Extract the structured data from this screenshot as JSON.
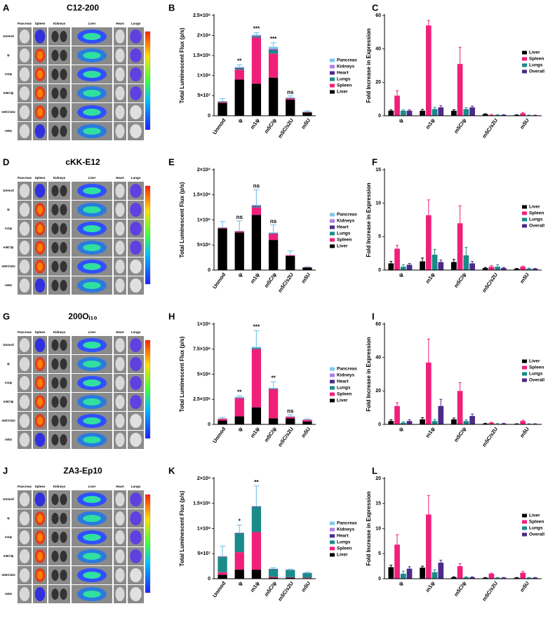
{
  "image_panels": [
    {
      "panel": "A",
      "title": "C12-200",
      "columns": [
        "Pancreas",
        "Spleen",
        "Kidneys",
        "Liver",
        "Heart",
        "Lungs"
      ],
      "rows": [
        "Unmod",
        "ψ",
        "m1ψ",
        "m5C/ψ",
        "m5C/s2U",
        "m5U"
      ]
    },
    {
      "panel": "D",
      "title": "cKK-E12",
      "columns": [
        "Pancreas",
        "Spleen",
        "Kidneys",
        "Liver",
        "Heart",
        "Lungs"
      ],
      "rows": [
        "Unmod",
        "ψ",
        "m1ψ",
        "m5C/ψ",
        "m5C/s2U",
        "m5U"
      ]
    },
    {
      "panel": "G",
      "title": "200Oᵢ₁₀",
      "columns": [
        "Pancreas",
        "Spleen",
        "Kidneys",
        "Liver",
        "Heart",
        "Lungs"
      ],
      "rows": [
        "Unmod",
        "ψ",
        "m1ψ",
        "m5C/ψ",
        "m5C/s2U",
        "m5U"
      ]
    },
    {
      "panel": "J",
      "title": "ZA3-Ep10",
      "columns": [
        "Pancreas",
        "Spleen",
        "Kidneys",
        "Liver",
        "Heart",
        "Lungs"
      ],
      "rows": [
        "Unmod",
        "ψ",
        "m1ψ",
        "m5C/ψ",
        "m5C/s2U",
        "m5U"
      ]
    }
  ],
  "chart_data": [
    {
      "panel": "B",
      "type": "bar",
      "stacked": true,
      "ylabel": "Total Luminescent Flux (p/s)",
      "categories": [
        "Unmod",
        "ψ",
        "m1ψ",
        "m5C/ψ",
        "m5C/s2U",
        "m5U"
      ],
      "ylim": [
        0,
        250000000
      ],
      "yticks": [
        0,
        {
          "value": 50000000,
          "label": "5×10⁷"
        },
        {
          "value": 100000000,
          "label": "1×10⁸"
        },
        {
          "value": 150000000,
          "label": "1.5×10⁸"
        },
        {
          "value": 200000000,
          "label": "2×10⁸"
        },
        {
          "value": 250000000,
          "label": "2.5×10⁸"
        }
      ],
      "annotations": [
        null,
        "**",
        "***",
        "***",
        "ns",
        null
      ],
      "series": [
        {
          "name": "Liver",
          "color": "#000000",
          "values": [
            32000000,
            90000000,
            80000000,
            95000000,
            40000000,
            8000000
          ]
        },
        {
          "name": "Spleen",
          "color": "#f0207a",
          "values": [
            2000000,
            25000000,
            115000000,
            60000000,
            3000000,
            1000000
          ]
        },
        {
          "name": "Lungs",
          "color": "#1a8a8a",
          "values": [
            1000000,
            3000000,
            3000000,
            8000000,
            1000000,
            500000
          ]
        },
        {
          "name": "Heart",
          "color": "#4b2a8a",
          "values": [
            500000,
            1000000,
            1000000,
            2000000,
            500000,
            200000
          ]
        },
        {
          "name": "Kidneys",
          "color": "#b07fe0",
          "values": [
            500000,
            1000000,
            1000000,
            2000000,
            500000,
            200000
          ]
        },
        {
          "name": "Pancreas",
          "color": "#7ec8e8",
          "values": [
            500000,
            2000000,
            2000000,
            5000000,
            500000,
            200000
          ],
          "errors": [
            6000000,
            5000000,
            5000000,
            10000000,
            4000000,
            2000000
          ]
        }
      ]
    },
    {
      "panel": "C",
      "type": "bar",
      "stacked": false,
      "ylabel": "Fold Increase in Expression",
      "categories": [
        "ψ",
        "m1ψ",
        "m5C/ψ",
        "m5C/s2U",
        "m5U"
      ],
      "ylim": [
        0,
        60
      ],
      "yticks": [
        0,
        20,
        40,
        60
      ],
      "series": [
        {
          "name": "Liver",
          "color": "#000000",
          "values": [
            3,
            3,
            3,
            1,
            0.5
          ],
          "errors": [
            0.5,
            0.8,
            0.6,
            0.2,
            0.1
          ]
        },
        {
          "name": "Spleen",
          "color": "#f0207a",
          "values": [
            12,
            54,
            31,
            0.5,
            1.5
          ],
          "errors": [
            3,
            3,
            10,
            0.3,
            0.5
          ]
        },
        {
          "name": "Lungs",
          "color": "#1a8a8a",
          "values": [
            3,
            4,
            4,
            0.5,
            0.3
          ],
          "errors": [
            0.5,
            1,
            0.8,
            0.2,
            0.1
          ]
        },
        {
          "name": "Overall",
          "color": "#4b2a8a",
          "values": [
            3,
            5,
            5,
            0.5,
            0.3
          ],
          "errors": [
            0.5,
            1,
            0.8,
            0.2,
            0.1
          ]
        }
      ]
    },
    {
      "panel": "E",
      "type": "bar",
      "stacked": true,
      "ylabel": "Total Luminescent Flux (p/s)",
      "categories": [
        "Unmod",
        "ψ",
        "m1ψ",
        "m5C/ψ",
        "m5C/s2U",
        "m5U"
      ],
      "ylim": [
        0,
        2000000000
      ],
      "yticks": [
        0,
        {
          "value": 500000000,
          "label": "5×10⁸"
        },
        {
          "value": 1000000000,
          "label": "1×10⁹"
        },
        {
          "value": 1500000000,
          "label": "1.5×10⁹"
        },
        {
          "value": 2000000000,
          "label": "2×10⁹"
        }
      ],
      "annotations": [
        null,
        "ns",
        "ns",
        "ns",
        null,
        null
      ],
      "series": [
        {
          "name": "Liver",
          "color": "#000000",
          "values": [
            830000000,
            750000000,
            1100000000,
            600000000,
            280000000,
            50000000
          ]
        },
        {
          "name": "Spleen",
          "color": "#f0207a",
          "values": [
            10000000,
            20000000,
            150000000,
            120000000,
            15000000,
            5000000
          ]
        },
        {
          "name": "Lungs",
          "color": "#1a8a8a",
          "values": [
            5000000,
            5000000,
            20000000,
            10000000,
            3000000,
            1000000
          ]
        },
        {
          "name": "Heart",
          "color": "#4b2a8a",
          "values": [
            2000000,
            2000000,
            10000000,
            5000000,
            1000000,
            1000000
          ]
        },
        {
          "name": "Kidneys",
          "color": "#b07fe0",
          "values": [
            2000000,
            2000000,
            10000000,
            5000000,
            1000000,
            1000000
          ]
        },
        {
          "name": "Pancreas",
          "color": "#7ec8e8",
          "values": [
            1000000,
            1000000,
            10000000,
            10000000,
            1000000,
            1000000
          ],
          "errors": [
            120000000,
            200000000,
            300000000,
            150000000,
            80000000,
            10000000
          ]
        }
      ]
    },
    {
      "panel": "F",
      "type": "bar",
      "stacked": false,
      "ylabel": "Fold Increase in Expression",
      "categories": [
        "ψ",
        "m1ψ",
        "m5C/ψ",
        "m5C/s2U",
        "m5U"
      ],
      "ylim": [
        0,
        15
      ],
      "yticks": [
        0,
        5,
        10,
        15
      ],
      "series": [
        {
          "name": "Liver",
          "color": "#000000",
          "values": [
            1,
            1.3,
            1.2,
            0.3,
            0.2
          ],
          "errors": [
            0.3,
            0.5,
            0.4,
            0.1,
            0.05
          ]
        },
        {
          "name": "Spleen",
          "color": "#f0207a",
          "values": [
            3.2,
            8.2,
            7,
            0.5,
            0.5
          ],
          "errors": [
            0.5,
            2.3,
            2.6,
            0.2,
            0.1
          ]
        },
        {
          "name": "Lungs",
          "color": "#1a8a8a",
          "values": [
            0.5,
            2.3,
            2.2,
            0.5,
            0.2
          ],
          "errors": [
            0.3,
            0.8,
            1.2,
            0.3,
            0.1
          ]
        },
        {
          "name": "Overall",
          "color": "#4b2a8a",
          "values": [
            0.8,
            1.2,
            1,
            0.3,
            0.2
          ],
          "errors": [
            0.2,
            0.3,
            0.3,
            0.1,
            0.05
          ]
        }
      ]
    },
    {
      "panel": "H",
      "type": "bar",
      "stacked": true,
      "ylabel": "Total Luminescent Flux (p/s)",
      "categories": [
        "Unmod",
        "ψ",
        "m1ψ",
        "m5C/ψ",
        "m5C/s2U",
        "m5U"
      ],
      "ylim": [
        0,
        1000000000
      ],
      "yticks": [
        0,
        {
          "value": 250000000,
          "label": "2.5×10⁸"
        },
        {
          "value": 500000000,
          "label": "5×10⁸"
        },
        {
          "value": 750000000,
          "label": "7.5×10⁸"
        },
        {
          "value": 1000000000,
          "label": "1×10⁹"
        }
      ],
      "annotations": [
        null,
        "**",
        "***",
        "**",
        "ns",
        null
      ],
      "series": [
        {
          "name": "Liver",
          "color": "#000000",
          "values": [
            40000000,
            80000000,
            170000000,
            60000000,
            60000000,
            30000000
          ]
        },
        {
          "name": "Spleen",
          "color": "#f0207a",
          "values": [
            15000000,
            180000000,
            580000000,
            290000000,
            15000000,
            15000000
          ]
        },
        {
          "name": "Lungs",
          "color": "#1a8a8a",
          "values": [
            2000000,
            5000000,
            10000000,
            5000000,
            2000000,
            1000000
          ]
        },
        {
          "name": "Heart",
          "color": "#4b2a8a",
          "values": [
            1000000,
            2000000,
            2000000,
            2000000,
            1000000,
            1000000
          ]
        },
        {
          "name": "Kidneys",
          "color": "#b07fe0",
          "values": [
            1000000,
            2000000,
            2000000,
            2000000,
            1000000,
            1000000
          ]
        },
        {
          "name": "Pancreas",
          "color": "#7ec8e8",
          "values": [
            1000000,
            5000000,
            10000000,
            5000000,
            1000000,
            1000000
          ],
          "errors": [
            10000000,
            10000000,
            160000000,
            60000000,
            15000000,
            5000000
          ]
        }
      ]
    },
    {
      "panel": "I",
      "type": "bar",
      "stacked": false,
      "ylabel": "Fold Increase in Expression",
      "categories": [
        "ψ",
        "m1ψ",
        "m5C/ψ",
        "m5C/s2U",
        "m5U"
      ],
      "ylim": [
        0,
        60
      ],
      "yticks": [
        0,
        20,
        40,
        60
      ],
      "series": [
        {
          "name": "Liver",
          "color": "#000000",
          "values": [
            2,
            3,
            3,
            0.5,
            0.3
          ],
          "errors": [
            0.8,
            1,
            0.8,
            0.2,
            0.1
          ]
        },
        {
          "name": "Spleen",
          "color": "#f0207a",
          "values": [
            11,
            37,
            20,
            1,
            2
          ],
          "errors": [
            2,
            14,
            5,
            0.3,
            0.5
          ]
        },
        {
          "name": "Lungs",
          "color": "#1a8a8a",
          "values": [
            1,
            2,
            2,
            0.3,
            0.3
          ],
          "errors": [
            0.5,
            1,
            0.8,
            0.2,
            0.1
          ]
        },
        {
          "name": "Overall",
          "color": "#4b2a8a",
          "values": [
            2,
            11,
            5,
            0.5,
            0.3
          ],
          "errors": [
            0.8,
            4,
            1.2,
            0.2,
            0.1
          ]
        }
      ]
    },
    {
      "panel": "K",
      "type": "bar",
      "stacked": true,
      "ylabel": "Total Luminescent Flux (p/s)",
      "categories": [
        "Unmod",
        "ψ",
        "m1ψ",
        "m5C/ψ",
        "m5C/s2U",
        "m5U"
      ],
      "ylim": [
        0,
        200000000
      ],
      "yticks": [
        0,
        {
          "value": 50000000,
          "label": "5×10⁷"
        },
        {
          "value": 100000000,
          "label": "1×10⁸"
        },
        {
          "value": 150000000,
          "label": "1.5×10⁸"
        },
        {
          "value": 200000000,
          "label": "2×10⁸"
        }
      ],
      "annotations": [
        null,
        "*",
        "**",
        null,
        null,
        null
      ],
      "series": [
        {
          "name": "Liver",
          "color": "#000000",
          "values": [
            8000000,
            18000000,
            18000000,
            2000000,
            2000000,
            1000000
          ]
        },
        {
          "name": "Spleen",
          "color": "#f0207a",
          "values": [
            5000000,
            35000000,
            75000000,
            2000000,
            1000000,
            1000000
          ]
        },
        {
          "name": "Lungs",
          "color": "#1a8a8a",
          "values": [
            30000000,
            37000000,
            50000000,
            15000000,
            14000000,
            9000000
          ]
        },
        {
          "name": "Heart",
          "color": "#4b2a8a",
          "values": [
            1000000,
            1000000,
            1000000,
            500000,
            500000,
            500000
          ]
        },
        {
          "name": "Kidneys",
          "color": "#b07fe0",
          "values": [
            500000,
            500000,
            500000,
            200000,
            200000,
            200000
          ]
        },
        {
          "name": "Pancreas",
          "color": "#7ec8e8",
          "values": [
            500000,
            500000,
            500000,
            300000,
            300000,
            300000
          ],
          "errors": [
            20000000,
            15000000,
            40000000,
            2000000,
            1000000,
            1000000
          ]
        }
      ]
    },
    {
      "panel": "L",
      "type": "bar",
      "stacked": false,
      "ylabel": "Fold Increase in Expression",
      "categories": [
        "ψ",
        "m1ψ",
        "m5C/ψ",
        "m5C/s2U",
        "m5U"
      ],
      "ylim": [
        0,
        20
      ],
      "yticks": [
        0,
        5,
        10,
        15,
        20
      ],
      "series": [
        {
          "name": "Liver",
          "color": "#000000",
          "values": [
            2.3,
            2.2,
            0.3,
            0.2,
            0.2
          ],
          "errors": [
            0.4,
            0.3,
            0.1,
            0.05,
            0.05
          ]
        },
        {
          "name": "Spleen",
          "color": "#f0207a",
          "values": [
            6.8,
            12.8,
            2.5,
            1,
            1.2
          ],
          "errors": [
            2,
            3.8,
            0.5,
            0.1,
            0.3
          ]
        },
        {
          "name": "Lungs",
          "color": "#1a8a8a",
          "values": [
            1,
            1.3,
            0.3,
            0.2,
            0.2
          ],
          "errors": [
            0.5,
            0.5,
            0.1,
            0.05,
            0.05
          ]
        },
        {
          "name": "Overall",
          "color": "#4b2a8a",
          "values": [
            2,
            3.2,
            0.3,
            0.2,
            0.2
          ],
          "errors": [
            0.4,
            0.5,
            0.1,
            0.05,
            0.05
          ]
        }
      ]
    }
  ]
}
